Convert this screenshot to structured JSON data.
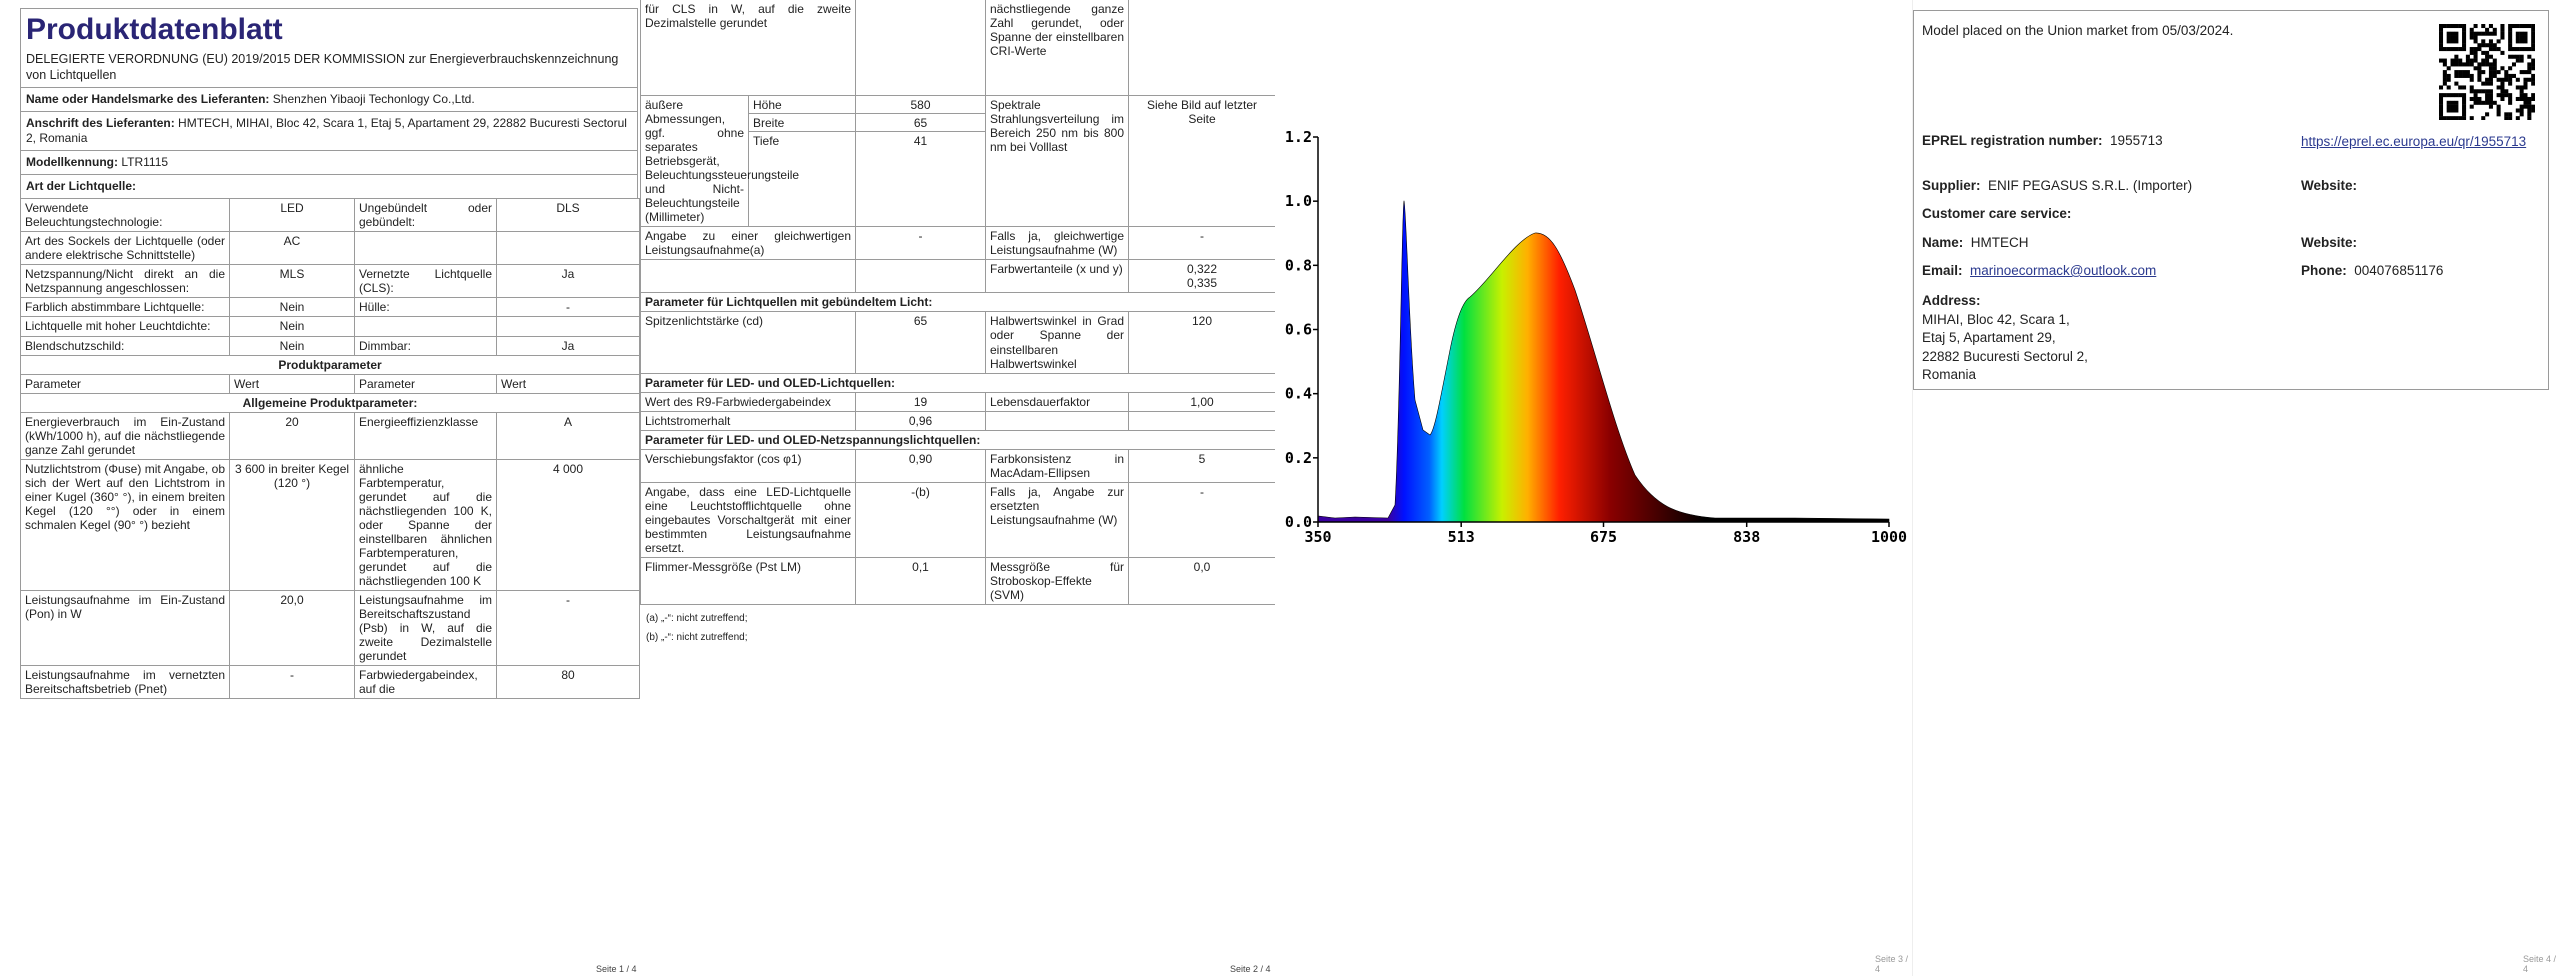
{
  "page1": {
    "title": "Produktdatenblatt",
    "regulation": "DELEGIERTE VERORDNUNG (EU) 2019/2015 DER KOMMISSION zur Energieverbrauchskennzeichnung von Lichtquellen",
    "supplier_name": {
      "label": "Name oder Handelsmarke des Lieferanten:",
      "value": "Shenzhen Yibaoji Techonlogy Co.,Ltd."
    },
    "supplier_address": {
      "label": "Anschrift des Lieferanten:",
      "value": "HMTECH, MIHAI, Bloc 42, Scara 1, Etaj 5, Apartament 29, 22882 Bucuresti Sectorul 2, Romania"
    },
    "model": {
      "label": "Modellkennung:",
      "value": "LTR1115"
    },
    "light_source_type": "Art der Lichtquelle:",
    "rows": [
      [
        "Verwendete Beleuchtungstechnologie:",
        "LED",
        "Ungebündelt oder gebündelt:",
        "DLS"
      ],
      [
        "Art des Sockels der Lichtquelle (oder andere elektrische Schnittstelle)",
        "AC"
      ],
      [
        "Netzspannung/Nicht direkt an die Netzspannung angeschlossen:",
        "MLS",
        "Vernetzte Lichtquelle (CLS):",
        "Ja"
      ],
      [
        "Farblich abstimmbare Lichtquelle:",
        "Nein",
        "Hülle:",
        "-"
      ],
      [
        "Lichtquelle mit hoher Leuchtdichte:",
        "Nein"
      ],
      [
        "Blendschutzschild:",
        "Nein",
        "Dimmbar:",
        "Ja"
      ]
    ],
    "section_product_params": "Produktparameter",
    "param_header": [
      "Parameter",
      "Wert",
      "Parameter",
      "Wert"
    ],
    "section_general": "Allgemeine Produktparameter:",
    "general_rows": [
      [
        "Energieverbrauch im Ein-Zustand (kWh/1000 h), auf die nächstliegende ganze Zahl gerundet",
        "20",
        "Energieeffizienzklasse",
        "A"
      ],
      [
        "Nutzlichtstrom (Φuse) mit Angabe, ob sich der Wert auf den Lichtstrom in einer Kugel (360° °), in einem breiten Kegel (120 °°) oder in einem schmalen Kegel (90° °) bezieht",
        "3 600 in breiter Kegel (120 °)",
        "ähnliche Farbtemperatur, gerundet auf die nächstliegenden 100 K, oder Spanne der einstellbaren ähnlichen Farbtemperaturen, gerundet auf die nächstliegenden 100 K",
        "4 000"
      ],
      [
        "Leistungsaufnahme im Ein-Zustand (Pon) in W",
        "20,0",
        "Leistungsaufnahme im Bereitschaftszustand (Psb) in W, auf die zweite Dezimalstelle gerundet",
        "-"
      ],
      [
        "Leistungsaufnahme im vernetzten Bereitschaftsbetrieb (Pnet)",
        "-",
        "Farbwiedergabeindex, auf die",
        "80"
      ]
    ],
    "footer": "Seite 1 / 4"
  },
  "page2": {
    "continued": [
      "für CLS in W, auf die zweite Dezimalstelle gerundet",
      "nächstliegende ganze Zahl gerundet, oder Spanne der einstellbaren CRI-Werte"
    ],
    "dimensions": {
      "label": "äußere Abmessungen, ggf. ohne separates Betriebsgerät, Beleuchtungssteuerungsteile und Nicht-Beleuchtungsteile (Millimeter)",
      "items": [
        {
          "name": "Höhe",
          "value": "580"
        },
        {
          "name": "Breite",
          "value": "65"
        },
        {
          "name": "Tiefe",
          "value": "41"
        }
      ],
      "spectral_label": "Spektrale Strahlungsverteilung im Bereich 250 nm bis 800 nm bei Volllast",
      "spectral_value": "Siehe Bild auf letzter Seite"
    },
    "equivalent": [
      "Angabe zu einer gleichwertigen Leistungsaufnahme(a)",
      "-",
      "Falls ja, gleichwertige Leistungsaufnahme (W)",
      "-"
    ],
    "chromaticity": {
      "label": "Farbwertanteile (x und y)",
      "x": "0,322",
      "y": "0,335"
    },
    "section_directional": "Parameter für Lichtquellen mit gebündeltem Licht:",
    "directional_rows": [
      [
        "Spitzenlichtstärke (cd)",
        "65",
        "Halbwertswinkel in Grad oder Spanne der einstellbaren Halbwertswinkel",
        "120"
      ]
    ],
    "section_led": "Parameter für LED- und OLED-Lichtquellen:",
    "led_rows": [
      [
        "Wert des R9-Farbwiedergabeindex",
        "19",
        "Lebensdauerfaktor",
        "1,00"
      ],
      [
        "Lichtstromerhalt",
        "0,96"
      ]
    ],
    "section_mains": "Parameter für LED- und OLED-Netzspannungslichtquellen:",
    "mains_rows": [
      [
        "Verschiebungsfaktor (cos φ1)",
        "0,90",
        "Farbkonsistenz in MacAdam-Ellipsen",
        "5"
      ],
      [
        "Angabe, dass eine LED-Lichtquelle eine Leuchtstofflichtquelle ohne eingebautes Vorschaltgerät mit einer bestimmten Leistungsaufnahme ersetzt.",
        "-(b)",
        "Falls ja, Angabe zur ersetzten Leistungsaufnahme (W)",
        "-"
      ],
      [
        "Flimmer-Messgröße (Pst LM)",
        "0,1",
        "Messgröße für Stroboskop-Effekte (SVM)",
        "0,0"
      ]
    ],
    "footnotes": [
      "(a) „-“: nicht zutreffend;",
      "(b) „-“: nicht zutreffend;"
    ],
    "footer": "Seite 2 / 4"
  },
  "page3": {
    "spectrum": {
      "xlim": [
        350,
        1000
      ],
      "ylim": [
        0,
        1.2
      ],
      "xticks": [
        350,
        513,
        675,
        838,
        1000
      ],
      "yticks": [
        {
          "value": 0,
          "label": "0.0"
        },
        {
          "value": 0.2,
          "label": "0.2"
        },
        {
          "value": 0.4,
          "label": "0.4"
        },
        {
          "value": 0.6,
          "label": "0.6"
        },
        {
          "value": 0.8,
          "label": "0.8"
        },
        {
          "value": 1,
          "label": "1.0"
        },
        {
          "value": 1.2,
          "label": "1.2"
        }
      ]
    },
    "footer": "Seite 3 / 4"
  },
  "page4": {
    "market": "Model placed on the Union market from 05/03/2024.",
    "eprel": {
      "label": "EPREL registration number:",
      "value": "1955713",
      "link": "https://eprel.ec.europa.eu/qr/1955713"
    },
    "supplier": {
      "label": "Supplier:",
      "value": "ENIF PEGASUS S.R.L. (Importer)",
      "website": "Website:"
    },
    "customer_care": "Customer care service:",
    "name": {
      "label": "Name:",
      "value": "HMTECH",
      "website": "Website:"
    },
    "email": {
      "label": "Email:",
      "value": "marinoecormack@outlook.com"
    },
    "phone": {
      "label": "Phone:",
      "value": "004076851176"
    },
    "address": {
      "label": "Address:",
      "lines": [
        "MIHAI, Bloc 42, Scara 1,",
        "Etaj 5, Apartament 29,",
        "22882 Bucuresti Sectorul 2,",
        "Romania"
      ]
    },
    "footer": "Seite 4 / 4"
  }
}
